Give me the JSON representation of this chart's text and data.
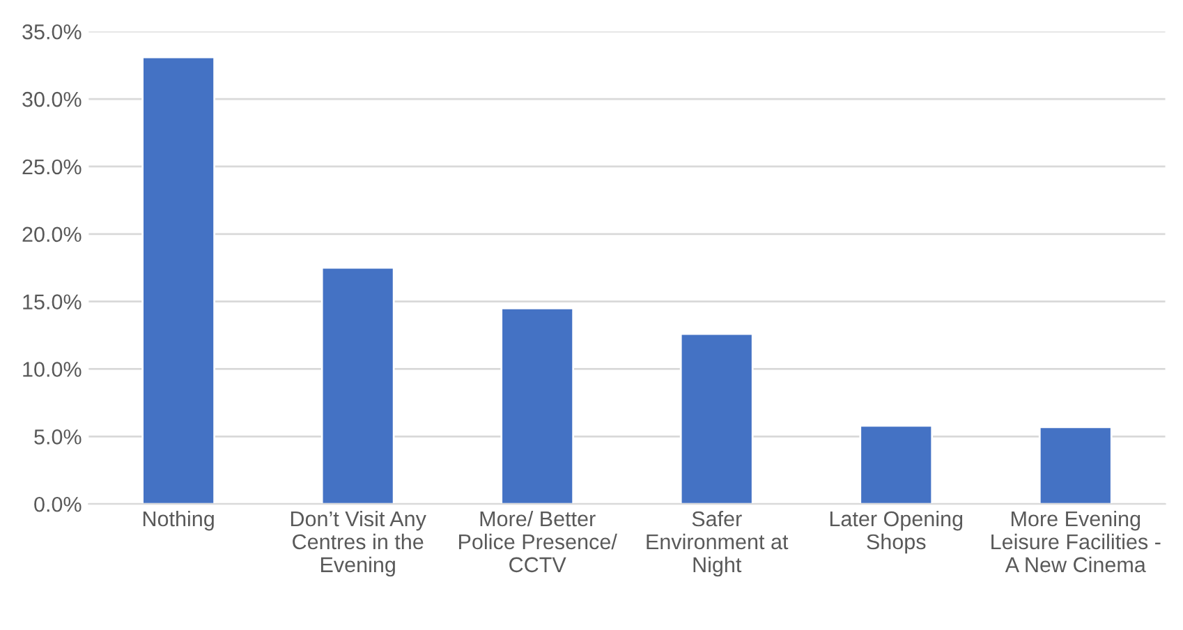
{
  "chart_data": {
    "type": "bar",
    "categories": [
      "Nothing",
      "Don’t Visit Any\nCentres in the\nEvening",
      "More/ Better\nPolice Presence/\nCCTV",
      "Safer\nEnvironment at\nNight",
      "Later Opening\nShops",
      "More Evening\nLeisure Facilities -\nA New Cinema"
    ],
    "values": [
      33.1,
      17.5,
      14.5,
      12.6,
      5.8,
      5.7
    ],
    "color": "#4472c4",
    "ylim": [
      0,
      35
    ],
    "yticks": [
      {
        "value": 0,
        "label": "0.0%"
      },
      {
        "value": 5,
        "label": "5.0%"
      },
      {
        "value": 10,
        "label": "10.0%"
      },
      {
        "value": 15,
        "label": "15.0%"
      },
      {
        "value": 20,
        "label": "20.0%"
      },
      {
        "value": 25,
        "label": "25.0%"
      },
      {
        "value": 30,
        "label": "30.0%"
      },
      {
        "value": 35,
        "label": "35.0%"
      }
    ],
    "grid": "y",
    "legend": false
  }
}
